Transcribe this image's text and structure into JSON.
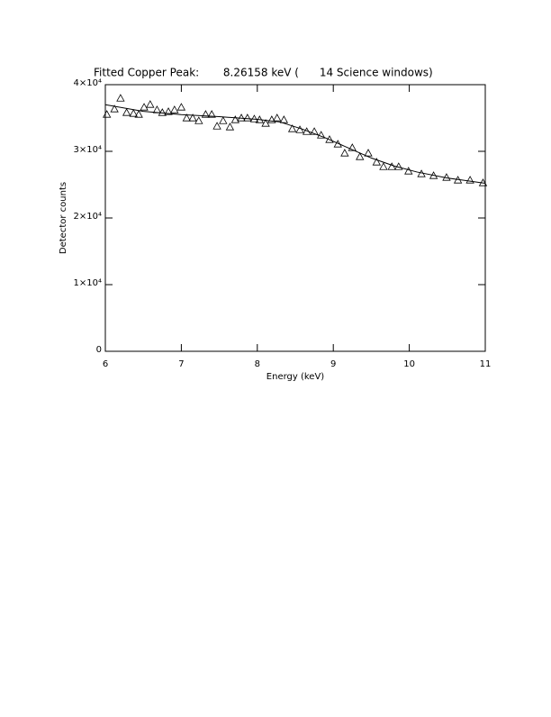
{
  "chart_data": {
    "type": "scatter",
    "title": "Fitted Copper Peak:       8.26158 keV (      14 Science windows)",
    "x_label": "Energy (keV)",
    "y_label": "Detector counts",
    "xlim": [
      6,
      11
    ],
    "xticks": [
      6,
      7,
      8,
      9,
      10,
      11
    ],
    "ylim": [
      0,
      40000
    ],
    "yticks": [
      0,
      {
        "value": 10000,
        "label": "1×10⁴"
      },
      {
        "value": 20000,
        "label": "2×10⁴"
      },
      {
        "value": 30000,
        "label": "3×10⁴"
      },
      {
        "value": 40000,
        "label": "4×10⁴"
      }
    ],
    "series": [
      {
        "type": "scatter",
        "marker": "triangle",
        "color": "#000000",
        "x": [
          6.02,
          6.12,
          6.2,
          6.28,
          6.37,
          6.44,
          6.51,
          6.59,
          6.68,
          6.75,
          6.83,
          6.91,
          7.0,
          7.07,
          7.15,
          7.23,
          7.32,
          7.4,
          7.47,
          7.55,
          7.64,
          7.71,
          7.79,
          7.87,
          7.96,
          8.03,
          8.11,
          8.19,
          8.26,
          8.35,
          8.46,
          8.56,
          8.65,
          8.75,
          8.84,
          8.95,
          9.06,
          9.15,
          9.25,
          9.35,
          9.46,
          9.57,
          9.66,
          9.77,
          9.86,
          9.99,
          10.16,
          10.32,
          10.49,
          10.64,
          10.8,
          10.97
        ],
        "values": [
          35540,
          36350,
          37970,
          35810,
          35680,
          35540,
          36620,
          37030,
          36220,
          35810,
          35950,
          36220,
          36620,
          35000,
          35000,
          34590,
          35540,
          35540,
          33780,
          34590,
          33650,
          34730,
          35000,
          35000,
          34860,
          34730,
          34190,
          34730,
          35000,
          34730,
          33380,
          33240,
          32970,
          32970,
          32430,
          31760,
          31080,
          29730,
          30540,
          29190,
          29730,
          28380,
          27700,
          27700,
          27700,
          27030,
          26620,
          26350,
          26080,
          25680,
          25680,
          25270
        ]
      },
      {
        "type": "line",
        "color": "#000000",
        "x": [
          6.0,
          6.5,
          7.0,
          7.5,
          8.0,
          8.3,
          8.6,
          8.9,
          9.2,
          9.5,
          9.8,
          10.1,
          10.5,
          11.0
        ],
        "values": [
          37000,
          36000,
          35500,
          35200,
          34800,
          34400,
          33300,
          32000,
          30500,
          29000,
          27800,
          26900,
          26000,
          25200
        ]
      }
    ]
  }
}
